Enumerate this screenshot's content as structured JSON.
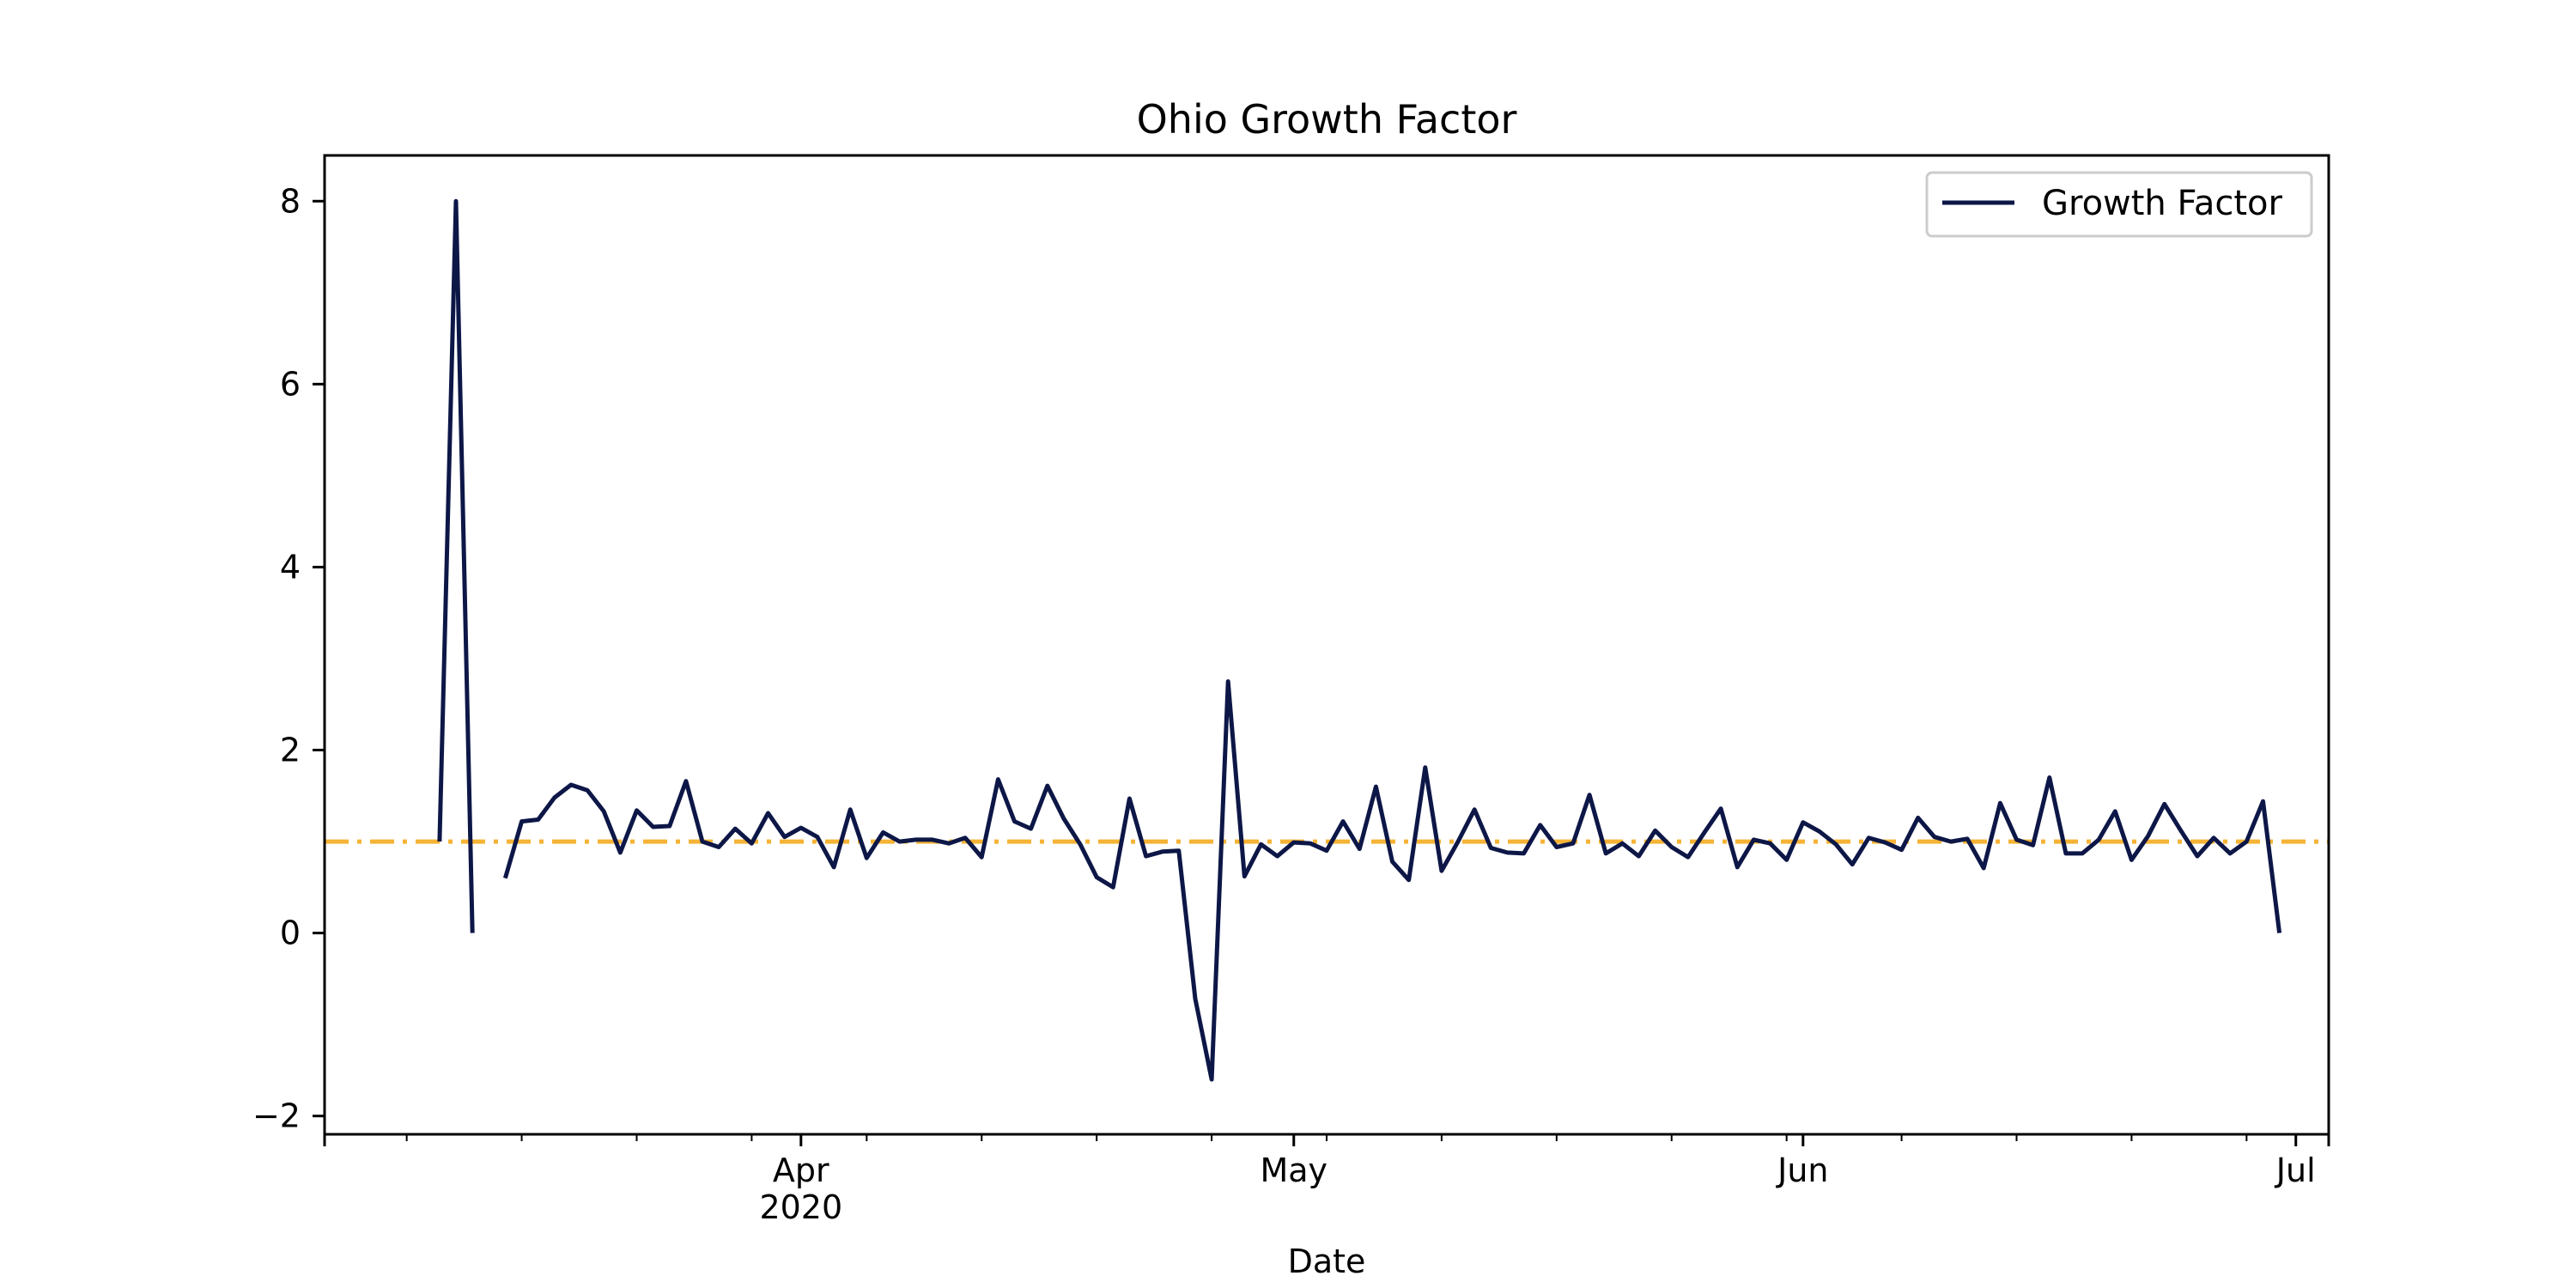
{
  "chart_data": {
    "type": "line",
    "title": "Ohio Growth Factor",
    "xlabel": "Date",
    "ylabel": "",
    "xlim": [
      "2020-03-03",
      "2020-07-03"
    ],
    "ylim": [
      -2.2,
      8.5
    ],
    "grid": false,
    "legend_placement": "top-right",
    "colors": {
      "series": "#0d1747",
      "reference": "#f5b335",
      "axes": "#000000",
      "background": "#ffffff"
    },
    "x_ticks": [
      {
        "date": "2020-04-01",
        "label": "Apr",
        "sublabel": "2020"
      },
      {
        "date": "2020-05-01",
        "label": "May",
        "sublabel": ""
      },
      {
        "date": "2020-06-01",
        "label": "Jun",
        "sublabel": ""
      },
      {
        "date": "2020-07-01",
        "label": "Jul",
        "sublabel": ""
      }
    ],
    "y_ticks": [
      {
        "value": -2,
        "label": "−2"
      },
      {
        "value": 0,
        "label": "0"
      },
      {
        "value": 2,
        "label": "2"
      },
      {
        "value": 4,
        "label": "4"
      },
      {
        "value": 6,
        "label": "6"
      },
      {
        "value": 8,
        "label": "8"
      }
    ],
    "reference_line": {
      "y": 1.0,
      "style": "dash-dot"
    },
    "x_start": "2020-03-10",
    "series": [
      {
        "name": "Growth Factor",
        "values": [
          1.0,
          8.0,
          0.0,
          null,
          0.6,
          1.22,
          1.24,
          1.48,
          1.62,
          1.56,
          1.33,
          0.88,
          1.34,
          1.16,
          1.17,
          1.66,
          1.0,
          0.94,
          1.14,
          0.98,
          1.31,
          1.05,
          1.15,
          1.05,
          0.72,
          1.35,
          0.82,
          1.1,
          1.0,
          1.02,
          1.02,
          0.98,
          1.04,
          0.83,
          1.68,
          1.22,
          1.14,
          1.61,
          1.25,
          0.97,
          0.61,
          0.5,
          1.47,
          0.84,
          0.89,
          0.9,
          -0.72,
          -1.6,
          2.75,
          0.62,
          0.97,
          0.84,
          0.99,
          0.98,
          0.9,
          1.22,
          0.92,
          1.6,
          0.78,
          0.58,
          1.81,
          0.68,
          1.0,
          1.35,
          0.93,
          0.88,
          0.87,
          1.18,
          0.94,
          0.98,
          1.51,
          0.87,
          0.98,
          0.84,
          1.12,
          0.94,
          0.83,
          1.1,
          1.36,
          0.72,
          1.02,
          0.98,
          0.8,
          1.21,
          1.11,
          0.97,
          0.75,
          1.04,
          0.99,
          0.91,
          1.26,
          1.05,
          1.0,
          1.03,
          0.71,
          1.42,
          1.02,
          0.96,
          1.7,
          0.87,
          0.87,
          1.02,
          1.33,
          0.8,
          1.06,
          1.41,
          1.12,
          0.84,
          1.04,
          0.87,
          1.0,
          1.44,
          0.0
        ]
      }
    ]
  }
}
